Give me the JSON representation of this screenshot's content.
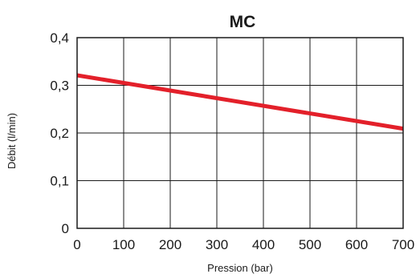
{
  "chart_data": {
    "type": "line",
    "title": "MC",
    "xlabel": "Pression (bar)",
    "ylabel": "Débit (l/min)",
    "xlim": [
      0,
      700
    ],
    "ylim": [
      0,
      0.4
    ],
    "x_ticks": [
      0,
      100,
      200,
      300,
      400,
      500,
      600,
      700
    ],
    "y_ticks": [
      0,
      0.1,
      0.2,
      0.3,
      0.4
    ],
    "x_tick_labels": [
      "0",
      "100",
      "200",
      "300",
      "400",
      "500",
      "600",
      "700"
    ],
    "y_tick_labels": [
      "0",
      "0,1",
      "0,2",
      "0,3",
      "0,4"
    ],
    "grid": true,
    "series": [
      {
        "color": "#e3202a",
        "x": [
          0,
          700
        ],
        "y": [
          0.321,
          0.209
        ]
      }
    ]
  }
}
